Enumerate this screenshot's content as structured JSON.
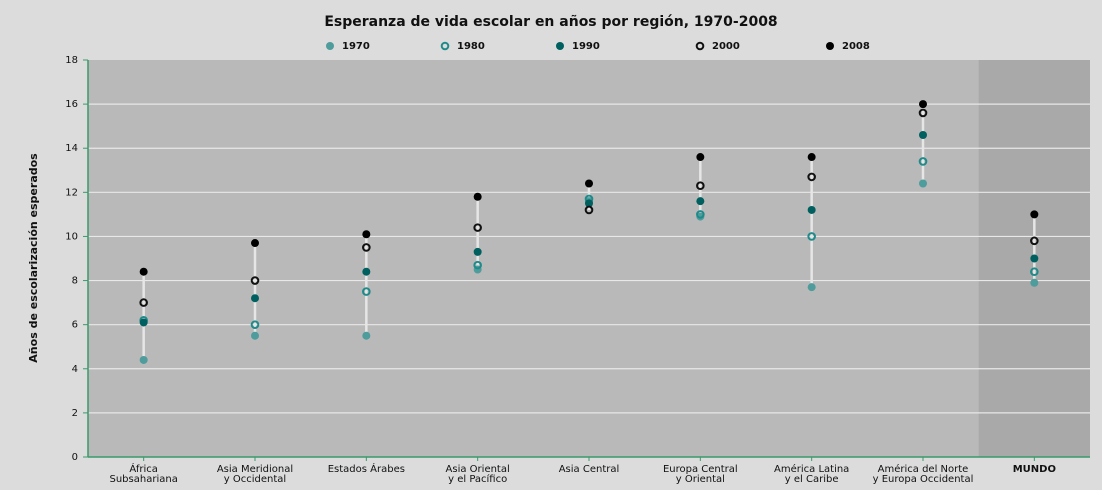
{
  "chart_data": {
    "type": "dotplot",
    "title": "Esperanza de vida escolar en años por región, 1970-2008",
    "y_label": "Años de escolarización esperados",
    "categories": [
      "África\nSubsahariana",
      "Asia Meridional\ny Occidental",
      "Estados Árabes",
      "Asia Oriental\ny el Pacífico",
      "Asia Central",
      "Europa Central\ny Oriental",
      "América Latina\ny el Caribe",
      "América del Norte\ny Europa Occidental",
      "MUNDO"
    ],
    "series": [
      {
        "name": "1970",
        "color": "#4e9c9c",
        "marker": "filled",
        "values": [
          4.4,
          5.5,
          5.5,
          8.5,
          11.6,
          10.9,
          7.7,
          12.4,
          7.9
        ]
      },
      {
        "name": "1980",
        "color": "#1f8a8a",
        "marker": "open",
        "values": [
          6.2,
          6.0,
          7.5,
          8.7,
          11.7,
          11.0,
          10.0,
          13.4,
          8.4
        ]
      },
      {
        "name": "1990",
        "color": "#005f5f",
        "marker": "filled",
        "values": [
          6.1,
          7.2,
          8.4,
          9.3,
          11.5,
          11.6,
          11.2,
          14.6,
          9.0
        ]
      },
      {
        "name": "2000",
        "color": "#111111",
        "marker": "open",
        "values": [
          7.0,
          8.0,
          9.5,
          10.4,
          11.2,
          12.3,
          12.7,
          15.6,
          9.8
        ]
      },
      {
        "name": "2008",
        "color": "#000000",
        "marker": "filled",
        "values": [
          8.4,
          9.7,
          10.1,
          11.8,
          12.4,
          13.6,
          13.6,
          16.0,
          11.0
        ]
      }
    ],
    "ylim": [
      0,
      18
    ],
    "yticks": [
      0,
      2,
      4,
      6,
      8,
      10,
      12,
      14,
      16,
      18
    ],
    "grid": true,
    "legend": "top"
  }
}
